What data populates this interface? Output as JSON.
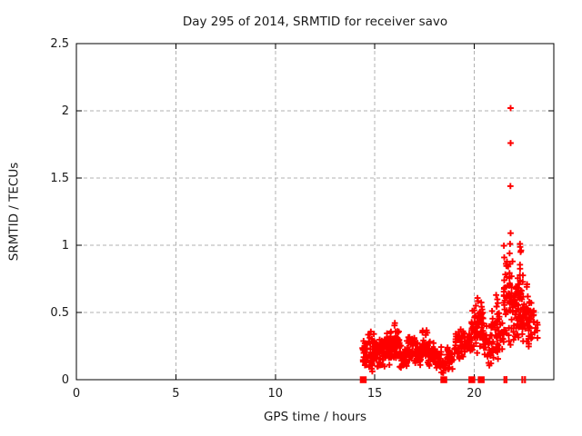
{
  "chart_data": {
    "type": "scatter",
    "title": "Day 295 of 2014, SRMTID for receiver savo",
    "xlabel": "GPS time / hours",
    "ylabel": "SRMTID / TECUs",
    "series_name": "SRMTID",
    "xlim": [
      0,
      24
    ],
    "ylim": [
      0,
      2.5
    ],
    "xticks": [
      0,
      5,
      10,
      15,
      20
    ],
    "xtick_labels": [
      "0",
      "5",
      "10",
      "15",
      "20"
    ],
    "yticks": [
      0,
      0.5,
      1,
      1.5,
      2,
      2.5
    ],
    "ytick_labels": [
      "0",
      "0.5",
      "1",
      "1.5",
      "2",
      "2.5"
    ],
    "grid": true,
    "legend": "none",
    "marker": "plus",
    "colors": {
      "marker": "#ff0000",
      "grid": "#b0b0b0",
      "border": "#000000",
      "text": "#1a1a1a",
      "background": "#ffffff"
    },
    "seed": 20140295,
    "point_clusters": [
      {
        "x0": 14.38,
        "x1": 14.55,
        "ymin": 0.03,
        "ymax": 0.33,
        "n": 18
      },
      {
        "x0": 14.55,
        "x1": 15.05,
        "ymin": 0.05,
        "ymax": 0.36,
        "n": 55
      },
      {
        "x0": 15.05,
        "x1": 15.55,
        "ymin": 0.08,
        "ymax": 0.31,
        "n": 45
      },
      {
        "x0": 15.55,
        "x1": 15.95,
        "ymin": 0.1,
        "ymax": 0.38,
        "n": 45
      },
      {
        "x0": 15.95,
        "x1": 16.25,
        "ymin": 0.15,
        "ymax": 0.43,
        "n": 40
      },
      {
        "x0": 16.25,
        "x1": 16.55,
        "ymin": 0.08,
        "ymax": 0.27,
        "n": 30
      },
      {
        "x0": 16.55,
        "x1": 17.05,
        "ymin": 0.1,
        "ymax": 0.34,
        "n": 45
      },
      {
        "x0": 17.05,
        "x1": 17.35,
        "ymin": 0.08,
        "ymax": 0.28,
        "n": 30
      },
      {
        "x0": 17.35,
        "x1": 17.65,
        "ymin": 0.12,
        "ymax": 0.37,
        "n": 30
      },
      {
        "x0": 17.65,
        "x1": 18.05,
        "ymin": 0.1,
        "ymax": 0.3,
        "n": 40
      },
      {
        "x0": 18.05,
        "x1": 18.35,
        "ymin": 0.08,
        "ymax": 0.25,
        "n": 25
      },
      {
        "x0": 18.35,
        "x1": 18.6,
        "ymin": 0.02,
        "ymax": 0.15,
        "n": 12
      },
      {
        "x0": 18.6,
        "x1": 19.0,
        "ymin": 0.05,
        "ymax": 0.26,
        "n": 28
      },
      {
        "x0": 19.0,
        "x1": 19.5,
        "ymin": 0.15,
        "ymax": 0.38,
        "n": 40
      },
      {
        "x0": 19.5,
        "x1": 19.85,
        "ymin": 0.2,
        "ymax": 0.36,
        "n": 28
      },
      {
        "x0": 19.85,
        "x1": 20.15,
        "ymin": 0.18,
        "ymax": 0.55,
        "n": 32
      },
      {
        "x0": 20.15,
        "x1": 20.45,
        "ymin": 0.2,
        "ymax": 0.62,
        "n": 40
      },
      {
        "x0": 20.45,
        "x1": 20.85,
        "ymin": 0.1,
        "ymax": 0.42,
        "n": 28
      },
      {
        "x0": 20.85,
        "x1": 21.3,
        "ymin": 0.15,
        "ymax": 0.65,
        "n": 45
      },
      {
        "x0": 21.3,
        "x1": 21.5,
        "ymin": 0.22,
        "ymax": 0.45,
        "n": 14
      },
      {
        "x0": 21.48,
        "x1": 21.65,
        "ymin": 0.3,
        "ymax": 1.0,
        "n": 26
      },
      {
        "x0": 21.7,
        "x1": 21.95,
        "ymin": 0.25,
        "ymax": 0.95,
        "n": 32
      },
      {
        "x0": 21.95,
        "x1": 22.25,
        "ymin": 0.2,
        "ymax": 0.8,
        "n": 42
      },
      {
        "x0": 22.25,
        "x1": 22.45,
        "ymin": 0.2,
        "ymax": 1.0,
        "n": 28
      },
      {
        "x0": 22.45,
        "x1": 22.75,
        "ymin": 0.2,
        "ymax": 0.72,
        "n": 38
      },
      {
        "x0": 22.75,
        "x1": 23.0,
        "ymin": 0.25,
        "ymax": 0.62,
        "n": 22
      },
      {
        "x0": 23.0,
        "x1": 23.2,
        "ymin": 0.28,
        "ymax": 0.5,
        "n": 8
      }
    ],
    "outlier_points": [
      [
        21.83,
        2.02
      ],
      [
        21.83,
        1.76
      ],
      [
        21.82,
        1.44
      ],
      [
        21.83,
        1.09
      ],
      [
        21.8,
        1.01
      ],
      [
        21.78,
        0.94
      ],
      [
        22.3,
        1.01
      ],
      [
        22.33,
        0.95
      ],
      [
        20.08,
        0.55
      ],
      [
        21.1,
        0.63
      ]
    ],
    "zero_square_points": [
      14.42,
      18.47,
      19.88,
      20.35
    ],
    "zero_bar_points": [
      21.52,
      21.62,
      22.42,
      22.55
    ]
  }
}
